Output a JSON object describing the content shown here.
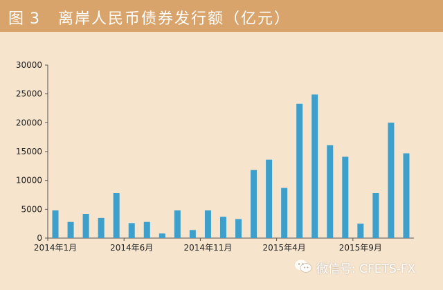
{
  "header": {
    "figure_label": "图 3",
    "title": "离岸人民币债券发行额（亿元）"
  },
  "watermark": {
    "text": "微信号: CFETS-FX",
    "icon": "wechat-icon"
  },
  "colors": {
    "background": "#f6e4cc",
    "title_bar": "#d9a46b",
    "bar": "#3f9fcb",
    "axis": "#555555"
  },
  "chart_data": {
    "type": "bar",
    "title": "离岸人民币债券发行额（亿元）",
    "categories": [
      "2014-01",
      "2014-02",
      "2014-03",
      "2014-04",
      "2014-05",
      "2014-06",
      "2014-07",
      "2014-08",
      "2014-09",
      "2014-10",
      "2014-11",
      "2014-12",
      "2015-01",
      "2015-02",
      "2015-03",
      "2015-04",
      "2015-05",
      "2015-06",
      "2015-07",
      "2015-08",
      "2015-09",
      "2015-10",
      "2015-11",
      "2015-12"
    ],
    "x_tick_labels": [
      {
        "index": 0,
        "label": "2014年1月"
      },
      {
        "index": 5,
        "label": "2014年6月"
      },
      {
        "index": 10,
        "label": "2014年11月"
      },
      {
        "index": 15,
        "label": "2015年4月"
      },
      {
        "index": 20,
        "label": "2015年9月"
      }
    ],
    "values": [
      4800,
      2800,
      4200,
      3500,
      7800,
      2600,
      2800,
      800,
      4800,
      1400,
      4800,
      3700,
      3300,
      11800,
      13600,
      8700,
      23300,
      24900,
      16100,
      14100,
      2500,
      7800,
      20000,
      14700
    ],
    "ylim": [
      0,
      30000
    ],
    "yticks": [
      0,
      5000,
      10000,
      15000,
      20000,
      25000,
      30000
    ],
    "grid": false,
    "legend": "none"
  }
}
